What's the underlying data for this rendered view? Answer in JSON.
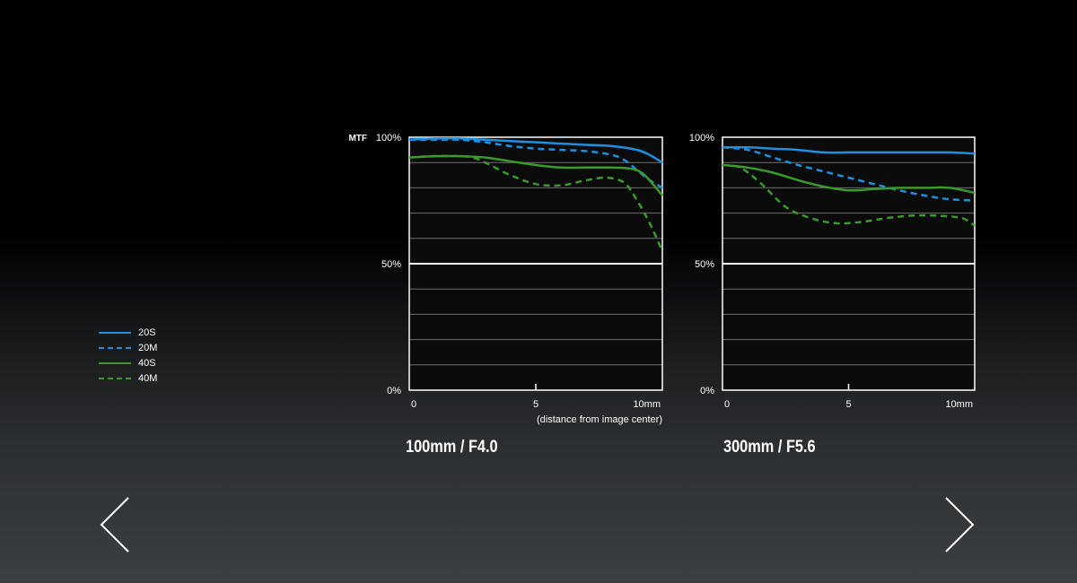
{
  "legend": [
    {
      "label": "20S",
      "color": "#1e90e0",
      "dash": "solid"
    },
    {
      "label": "20M",
      "color": "#1e90e0",
      "dash": "dashed"
    },
    {
      "label": "40S",
      "color": "#3a9a2a",
      "dash": "solid"
    },
    {
      "label": "40M",
      "color": "#3a9a2a",
      "dash": "dashed"
    }
  ],
  "chart_data": [
    {
      "type": "line",
      "subtitle": "100mm / F4.0",
      "ylabel": "MTF",
      "xlabel": "(distance from image center)",
      "xlim": [
        0,
        10
      ],
      "ylim": [
        0,
        100
      ],
      "xticks": [
        "0",
        "5",
        "10mm"
      ],
      "yticks": [
        "0%",
        "50%",
        "100%"
      ],
      "grid": true,
      "series": [
        {
          "name": "20S",
          "color": "#1e90e0",
          "dash": "solid",
          "x": [
            0,
            1,
            2,
            3,
            4,
            5,
            6,
            7,
            8,
            9,
            9.5,
            10
          ],
          "y": [
            99,
            99.5,
            99.5,
            99,
            98.5,
            98,
            97.5,
            97,
            96.5,
            95,
            93,
            90
          ]
        },
        {
          "name": "20M",
          "color": "#1e90e0",
          "dash": "dashed",
          "x": [
            0,
            1,
            2,
            3,
            4,
            5,
            6,
            7,
            8,
            8.5,
            9,
            9.5,
            10
          ],
          "y": [
            99,
            99,
            99,
            98,
            96.5,
            95.5,
            95,
            94.5,
            93,
            91,
            87,
            83,
            80
          ]
        },
        {
          "name": "40S",
          "color": "#3a9a2a",
          "dash": "solid",
          "x": [
            0,
            1,
            2,
            3,
            4,
            5,
            6,
            7,
            8,
            8.8,
            9.3,
            10
          ],
          "y": [
            92,
            92.5,
            92.5,
            92,
            90.5,
            89,
            88,
            88,
            88,
            87.5,
            85,
            77
          ]
        },
        {
          "name": "40M",
          "color": "#3a9a2a",
          "dash": "dashed",
          "x": [
            0,
            1,
            2,
            2.5,
            3,
            4,
            5,
            6,
            7,
            7.8,
            8.5,
            9,
            9.5,
            10
          ],
          "y": [
            92,
            92.5,
            92.5,
            92,
            90,
            85,
            81.5,
            81,
            83,
            84,
            82,
            75,
            66,
            55
          ]
        }
      ]
    },
    {
      "type": "line",
      "subtitle": "300mm / F5.6",
      "ylabel": "",
      "xlabel": "",
      "xlim": [
        0,
        10
      ],
      "ylim": [
        0,
        100
      ],
      "xticks": [
        "0",
        "5",
        "10mm"
      ],
      "yticks": [
        "0%",
        "50%",
        "100%"
      ],
      "grid": true,
      "series": [
        {
          "name": "20S",
          "color": "#1e90e0",
          "dash": "solid",
          "x": [
            0,
            1,
            2,
            3,
            4,
            5,
            6,
            7,
            8,
            9,
            10
          ],
          "y": [
            96,
            96,
            95.5,
            95,
            94,
            94,
            94,
            94,
            94,
            94,
            93.5
          ]
        },
        {
          "name": "20M",
          "color": "#1e90e0",
          "dash": "dashed",
          "x": [
            0,
            1,
            2,
            3,
            4,
            5,
            6,
            7,
            8,
            9,
            10
          ],
          "y": [
            96,
            95,
            92,
            89,
            86.5,
            84,
            81.5,
            79,
            77,
            75.5,
            75
          ]
        },
        {
          "name": "40S",
          "color": "#3a9a2a",
          "dash": "solid",
          "x": [
            0,
            1,
            2,
            3,
            4,
            5,
            6,
            7,
            8,
            9,
            10
          ],
          "y": [
            89,
            88,
            86,
            83,
            80.5,
            79,
            79.5,
            80,
            80,
            80,
            78
          ]
        },
        {
          "name": "40M",
          "color": "#3a9a2a",
          "dash": "dashed",
          "x": [
            0,
            0.7,
            1.5,
            2.5,
            3.5,
            4.5,
            5.5,
            6.5,
            7.5,
            8.5,
            9.5,
            10
          ],
          "y": [
            89,
            88,
            82,
            72.5,
            68,
            66,
            66.5,
            68,
            69,
            69,
            68,
            65
          ]
        }
      ]
    }
  ],
  "nav": {
    "prev": "previous-slide",
    "next": "next-slide"
  }
}
